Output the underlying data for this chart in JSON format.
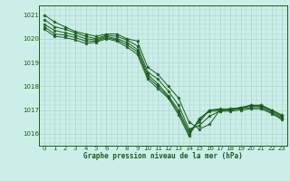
{
  "title": "Graphe pression niveau de la mer (hPa)",
  "bg_color": "#cceee8",
  "grid_color": "#aad4ce",
  "line_color": "#1a5c1a",
  "marker_color": "#1a5c1a",
  "xlim": [
    -0.5,
    23.5
  ],
  "ylim": [
    1015.5,
    1021.4
  ],
  "yticks": [
    1016,
    1017,
    1018,
    1019,
    1020,
    1021
  ],
  "xticks": [
    0,
    1,
    2,
    3,
    4,
    5,
    6,
    7,
    8,
    9,
    10,
    11,
    12,
    13,
    14,
    15,
    16,
    17,
    18,
    19,
    20,
    21,
    22,
    23
  ],
  "series": [
    [
      1021.0,
      1020.7,
      1020.5,
      1020.3,
      1020.2,
      1020.1,
      1020.2,
      1020.2,
      1020.0,
      1019.9,
      1018.8,
      1018.5,
      1018.0,
      1017.5,
      1016.5,
      1016.2,
      1016.4,
      1017.0,
      1017.0,
      1017.1,
      1017.2,
      1017.2,
      1017.0,
      1016.8
    ],
    [
      1020.8,
      1020.5,
      1020.4,
      1020.25,
      1020.1,
      1020.0,
      1020.15,
      1020.1,
      1019.95,
      1019.7,
      1018.6,
      1018.3,
      1017.8,
      1017.2,
      1016.2,
      1016.35,
      1016.75,
      1016.95,
      1017.05,
      1017.1,
      1017.2,
      1017.2,
      1017.0,
      1016.75
    ],
    [
      1020.6,
      1020.35,
      1020.25,
      1020.15,
      1020.0,
      1019.95,
      1020.1,
      1020.0,
      1019.85,
      1019.55,
      1018.5,
      1018.1,
      1017.6,
      1017.0,
      1016.1,
      1016.5,
      1017.0,
      1017.05,
      1017.05,
      1017.1,
      1017.15,
      1017.15,
      1016.95,
      1016.7
    ],
    [
      1020.5,
      1020.2,
      1020.15,
      1020.05,
      1019.9,
      1019.9,
      1020.05,
      1019.95,
      1019.75,
      1019.45,
      1018.4,
      1018.0,
      1017.55,
      1016.9,
      1016.0,
      1016.6,
      1017.0,
      1017.0,
      1017.0,
      1017.05,
      1017.1,
      1017.1,
      1016.9,
      1016.65
    ],
    [
      1020.4,
      1020.1,
      1020.05,
      1019.95,
      1019.8,
      1019.85,
      1020.0,
      1019.9,
      1019.65,
      1019.35,
      1018.3,
      1017.9,
      1017.5,
      1016.8,
      1015.9,
      1016.65,
      1016.95,
      1016.95,
      1016.95,
      1017.0,
      1017.05,
      1017.05,
      1016.85,
      1016.6
    ]
  ]
}
